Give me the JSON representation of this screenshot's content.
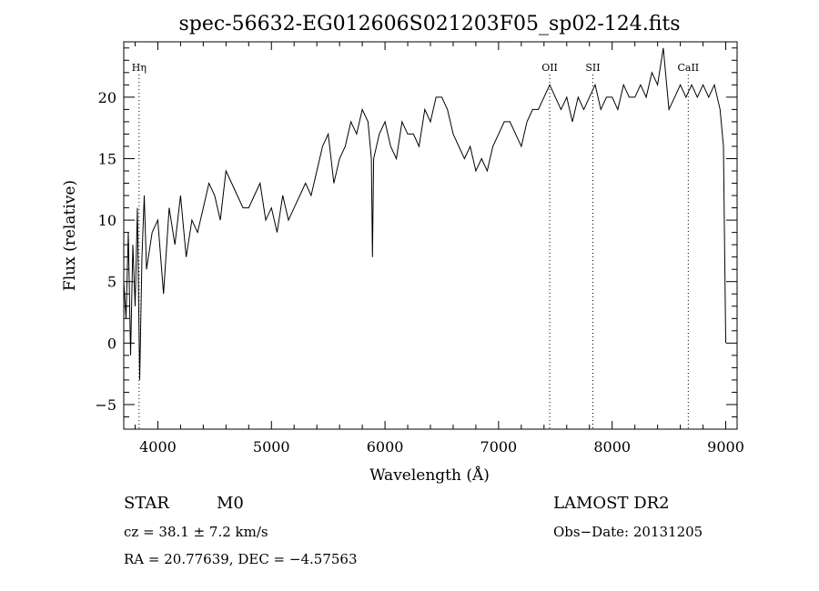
{
  "chart_data": {
    "type": "line",
    "title": "spec-56632-EG012606S021203F05_sp02-124.fits",
    "xlabel": "Wavelength (Å)",
    "ylabel": "Flux (relative)",
    "xlim": [
      3700,
      9100
    ],
    "ylim": [
      -7,
      24.5
    ],
    "x_ticks": [
      "4000",
      "5000",
      "6000",
      "7000",
      "8000",
      "9000"
    ],
    "y_ticks": [
      "−5",
      "0",
      "5",
      "10",
      "15",
      "20"
    ],
    "x_tick_values": [
      4000,
      5000,
      6000,
      7000,
      8000,
      9000
    ],
    "y_tick_values": [
      -5,
      0,
      5,
      10,
      15,
      20
    ],
    "grid": false,
    "series": [
      {
        "x": [
          3700,
          3720,
          3740,
          3760,
          3780,
          3800,
          3820,
          3840,
          3860,
          3880,
          3900,
          3950,
          4000,
          4050,
          4100,
          4150,
          4200,
          4250,
          4300,
          4350,
          4400,
          4450,
          4500,
          4550,
          4600,
          4650,
          4700,
          4750,
          4800,
          4850,
          4900,
          4950,
          5000,
          5050,
          5100,
          5150,
          5200,
          5250,
          5300,
          5350,
          5400,
          5450,
          5500,
          5550,
          5600,
          5650,
          5700,
          5750,
          5800,
          5850,
          5880,
          5890,
          5900,
          5950,
          6000,
          6050,
          6100,
          6150,
          6200,
          6250,
          6300,
          6350,
          6400,
          6450,
          6500,
          6550,
          6600,
          6650,
          6700,
          6750,
          6800,
          6850,
          6900,
          6950,
          7000,
          7050,
          7100,
          7150,
          7200,
          7250,
          7300,
          7350,
          7400,
          7450,
          7500,
          7550,
          7600,
          7650,
          7700,
          7750,
          7800,
          7850,
          7900,
          7950,
          8000,
          8050,
          8100,
          8150,
          8200,
          8250,
          8300,
          8350,
          8400,
          8450,
          8480,
          8500,
          8550,
          8600,
          8650,
          8700,
          8750,
          8800,
          8850,
          8900,
          8950,
          8980,
          9000
        ],
        "y": [
          5,
          2,
          9,
          -1,
          8,
          3,
          11,
          -3,
          7,
          12,
          6,
          9,
          10,
          4,
          11,
          8,
          12,
          7,
          10,
          9,
          11,
          13,
          12,
          10,
          14,
          13,
          12,
          11,
          11,
          12,
          13,
          10,
          11,
          9,
          12,
          10,
          11,
          12,
          13,
          12,
          14,
          16,
          17,
          13,
          15,
          16,
          18,
          17,
          19,
          18,
          15,
          7,
          15,
          17,
          18,
          16,
          15,
          18,
          17,
          17,
          16,
          19,
          18,
          20,
          20,
          19,
          17,
          16,
          15,
          16,
          14,
          15,
          14,
          16,
          17,
          18,
          18,
          17,
          16,
          18,
          19,
          19,
          20,
          21,
          20,
          19,
          20,
          18,
          20,
          19,
          20,
          21,
          19,
          20,
          20,
          19,
          21,
          20,
          20,
          21,
          20,
          22,
          21,
          24,
          21,
          19,
          20,
          21,
          20,
          21,
          20,
          21,
          20,
          21,
          19,
          16,
          0
        ]
      }
    ],
    "line_markers": [
      {
        "label": "Hη",
        "x": 3835
      },
      {
        "label": "OII",
        "x": 7450
      },
      {
        "label": "SII",
        "x": 7830
      },
      {
        "label": "CaII",
        "x": 8670
      }
    ]
  },
  "info": {
    "object_type": "STAR",
    "subclass": "M0",
    "survey": "LAMOST DR2",
    "cz": "cz = 38.1 ± 7.2 km/s",
    "obs_date": "Obs−Date: 20131205",
    "radec": "RA =  20.77639, DEC =  −4.57563"
  }
}
